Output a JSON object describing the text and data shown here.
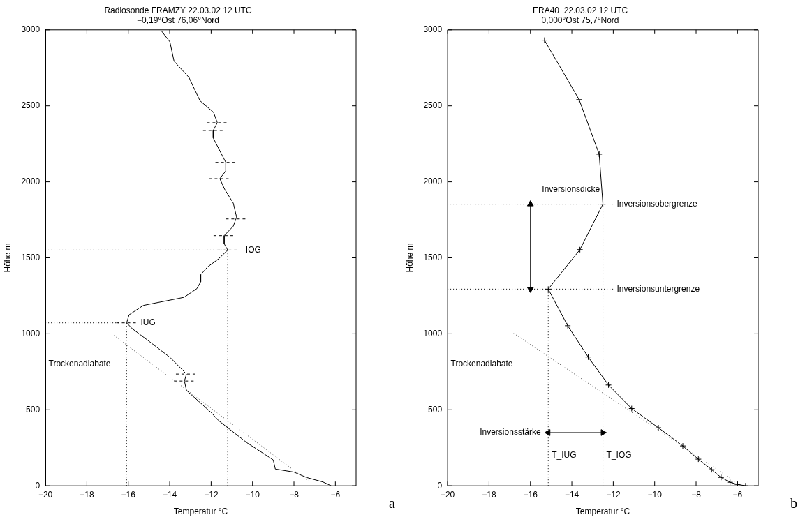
{
  "chart_data": [
    {
      "type": "line",
      "title": "Radiosonde FRAMZY 22.03.02 12 UTC",
      "subtitle": "−0,19°Ost 76,06°Nord",
      "xlabel": "Temperatur °C",
      "ylabel": "Höhe m",
      "xlim": [
        -20,
        -5
      ],
      "xticks": [
        -20,
        -18,
        -16,
        -14,
        -12,
        -10,
        -8,
        -6
      ],
      "ylim": [
        0,
        3000
      ],
      "yticks": [
        0,
        500,
        1000,
        1500,
        2000,
        2500,
        3000
      ],
      "grid": false,
      "series": [
        {
          "color": "#000000",
          "x": [
            -14.44,
            -13.99,
            -13.79,
            -13.07,
            -12.54,
            -11.88,
            -11.7,
            -11.9,
            -11.9,
            -11.29,
            -11.29,
            -11.58,
            -11.35,
            -10.93,
            -10.77,
            -10.93,
            -11.37,
            -11.37,
            -11.2,
            -11.64,
            -12.18,
            -12.5,
            -12.5,
            -12.69,
            -13.31,
            -15.27,
            -15.96,
            -16.08,
            -15.81,
            -14.98,
            -13.96,
            -13.19,
            -13.29,
            -13.19,
            -12.0,
            -11.64,
            -10.27,
            -9.5,
            -9.0,
            -8.9,
            -8.0,
            -7.4,
            -6.6,
            -6.2
          ],
          "values": [
            3000,
            2921,
            2794,
            2687,
            2534,
            2457,
            2389,
            2338,
            2289,
            2128,
            2072,
            2021,
            1952,
            1860,
            1768,
            1708,
            1646,
            1593,
            1551,
            1493,
            1439,
            1389,
            1343,
            1297,
            1240,
            1187,
            1125,
            1072,
            1034,
            949,
            842,
            735,
            689,
            628,
            482,
            429,
            283,
            215,
            170,
            110,
            90,
            55,
            25,
            0
          ]
        },
        {
          "color": "#555555",
          "line_style": "dotted",
          "x": [
            -16.8,
            -7.2
          ],
          "values": [
            1000,
            20
          ]
        },
        {
          "color": "#000000",
          "line_style": "dotted",
          "x": [
            -20,
            -11.2
          ],
          "values": [
            1551,
            1551
          ]
        },
        {
          "color": "#000000",
          "line_style": "dotted",
          "x": [
            -11.2,
            -11.2
          ],
          "values": [
            0,
            1551
          ]
        },
        {
          "color": "#000000",
          "line_style": "dotted",
          "x": [
            -20,
            -16.08
          ],
          "values": [
            1072,
            1072
          ]
        },
        {
          "color": "#000000",
          "line_style": "dotted",
          "x": [
            -16.08,
            -16.08
          ],
          "values": [
            0,
            1072
          ]
        },
        {
          "color": "#000000",
          "line_style": "dashed",
          "x": [
            -12.2,
            -11.19,
            null,
            -12.39,
            -11.4,
            null,
            -11.79,
            -10.79,
            null,
            -12.1,
            -11.08,
            null,
            -11.29,
            -10.27,
            null,
            -11.88,
            -10.89,
            null,
            -11.7,
            -10.63,
            null,
            -16.58,
            -15.57,
            null,
            -13.7,
            -12.68,
            null,
            -13.79,
            -12.78
          ],
          "values": [
            2389,
            2389,
            null,
            2338,
            2338,
            null,
            2128,
            2128,
            null,
            2021,
            2021,
            null,
            1756,
            1756,
            null,
            1646,
            1646,
            null,
            1551,
            1551,
            null,
            1072,
            1072,
            null,
            735,
            735,
            null,
            689,
            689
          ]
        }
      ],
      "annotations": [
        {
          "text": "IOG",
          "x": -10.5,
          "y": 1551
        },
        {
          "text": "IUG",
          "x": -15.57,
          "y": 1072
        },
        "Trockenadiabate",
        "a"
      ]
    },
    {
      "type": "line",
      "title": "ERA40  22.03.02 12 UTC",
      "subtitle": "0,000°Ost 75,7°Nord",
      "xlabel": "Temperatur °C",
      "ylabel": "Höhe m",
      "xlim": [
        -20,
        -5
      ],
      "xticks": [
        -20,
        -18,
        -16,
        -14,
        -12,
        -10,
        -8,
        -6
      ],
      "ylim": [
        0,
        3000
      ],
      "yticks": [
        0,
        500,
        1000,
        1500,
        2000,
        2500,
        3000
      ],
      "grid": false,
      "series": [
        {
          "color": "#000000",
          "marker": "cross",
          "x": [
            -15.32,
            -13.65,
            -12.68,
            -12.5,
            -13.61,
            -15.14,
            -14.2,
            -13.21,
            -12.23,
            -11.11,
            -9.82,
            -8.64,
            -7.89,
            -7.25,
            -6.79,
            -6.36,
            -6.0,
            -5.61
          ],
          "values": [
            2932,
            2541,
            2182,
            1853,
            1554,
            1294,
            1053,
            847,
            663,
            508,
            382,
            262,
            175,
            106,
            55,
            23,
            9,
            0
          ]
        },
        {
          "color": "#555555",
          "line_style": "dotted",
          "x": [
            -16.81,
            -6.07
          ],
          "values": [
            1003,
            23
          ]
        },
        {
          "color": "#000000",
          "line_style": "dotted",
          "x": [
            -20,
            -12.0
          ],
          "values": [
            1853,
            1853
          ]
        },
        {
          "color": "#000000",
          "line_style": "dotted",
          "x": [
            -12.5,
            -12.5
          ],
          "values": [
            0,
            1853
          ]
        },
        {
          "color": "#000000",
          "line_style": "dotted",
          "x": [
            -20,
            -12.0
          ],
          "values": [
            1294,
            1294
          ]
        },
        {
          "color": "#000000",
          "line_style": "dotted",
          "x": [
            -15.14,
            -15.14
          ],
          "values": [
            0,
            1294
          ]
        },
        {
          "color": "#000000",
          "marker": "triangle",
          "x": [
            -16,
            -16
          ],
          "values": [
            1294,
            1853
          ]
        },
        {
          "color": "#000000",
          "marker": "triangle",
          "x": [
            -15.14,
            -12.5
          ],
          "values": [
            350,
            350
          ]
        }
      ],
      "annotations": [
        {
          "text": "Inversionsobergrenze",
          "x": -12.0,
          "y": 1853
        },
        {
          "text": "Inversionsuntergrenze",
          "x": -12.0,
          "y": 1294
        },
        {
          "text": "T_IUG",
          "x": -15.14,
          "y": 199
        },
        {
          "text": "T_IOG",
          "x": -12.5,
          "y": 199
        },
        "Trockenadiabate",
        "Inversionsdicke",
        "Inversionsstärke",
        "b"
      ]
    }
  ]
}
